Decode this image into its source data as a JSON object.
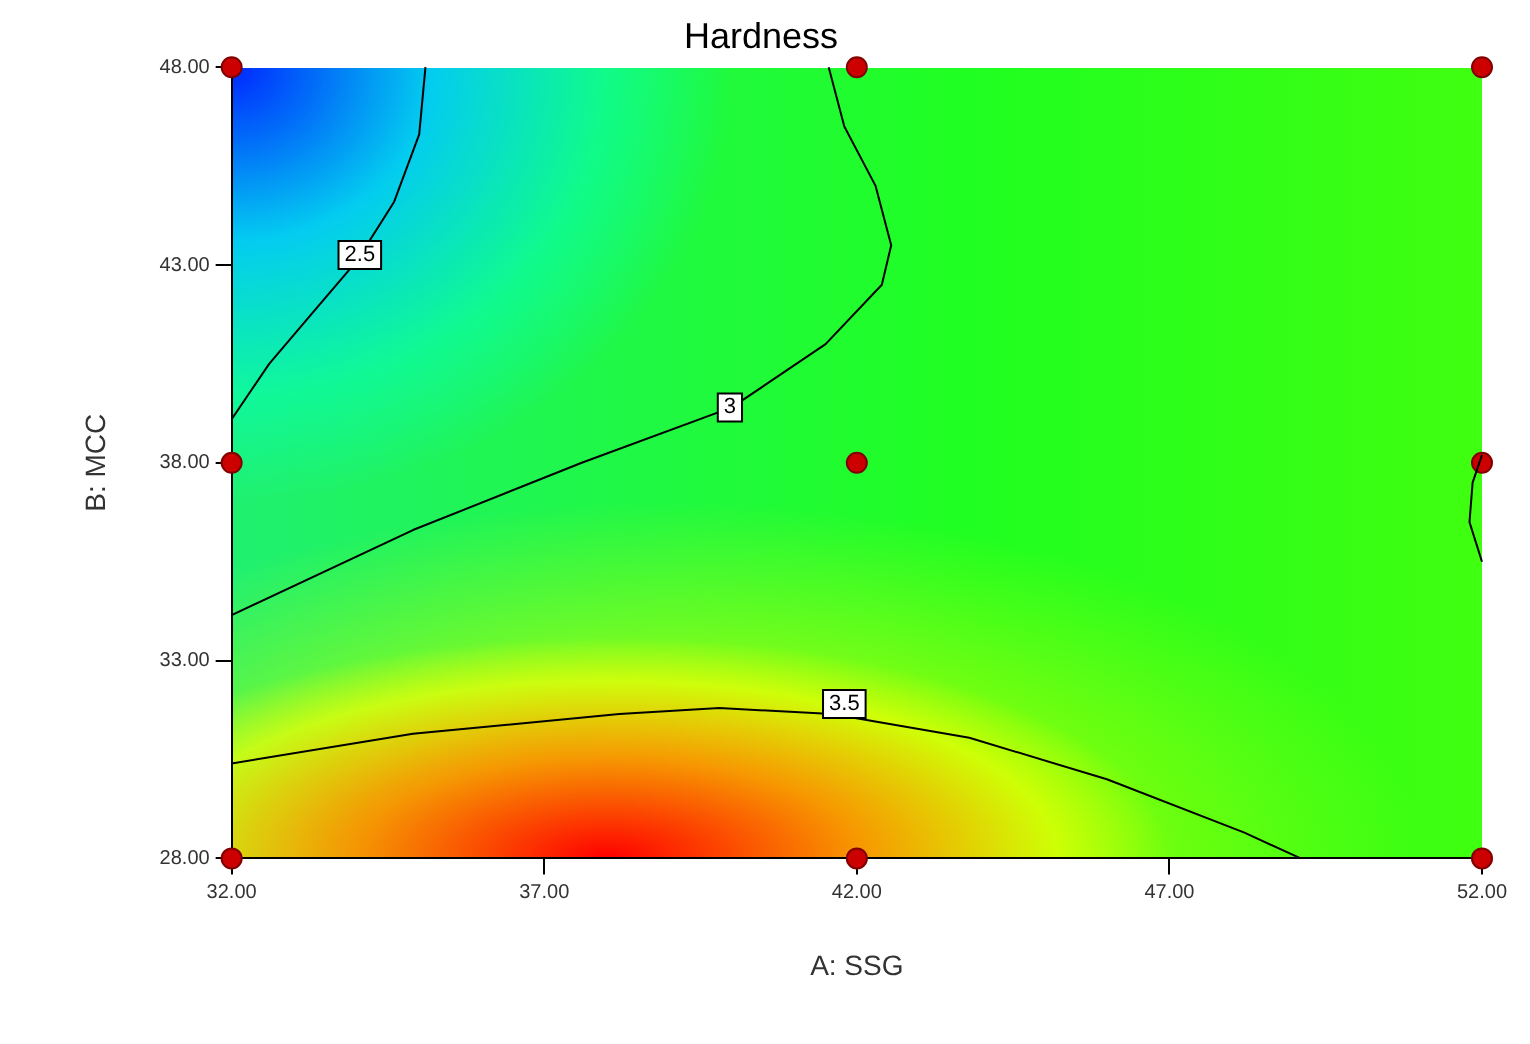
{
  "chart_data": {
    "type": "scatter",
    "title": "Hardness",
    "xlabel": "A: SSG",
    "ylabel": "B: MCC",
    "xlim": [
      32,
      52
    ],
    "ylim": [
      28,
      48
    ],
    "xticks": [
      {
        "value": 32,
        "label": "32.00"
      },
      {
        "value": 37,
        "label": "37.00"
      },
      {
        "value": 42,
        "label": "42.00"
      },
      {
        "value": 47,
        "label": "47.00"
      },
      {
        "value": 52,
        "label": "52.00"
      }
    ],
    "yticks": [
      {
        "value": 28,
        "label": "28.00"
      },
      {
        "value": 33,
        "label": "33.00"
      },
      {
        "value": 38,
        "label": "38.00"
      },
      {
        "value": 43,
        "label": "43.00"
      },
      {
        "value": 48,
        "label": "48.00"
      }
    ],
    "grid": false,
    "legend": false,
    "series": [
      {
        "type": "line",
        "color": "#000000",
        "marker": "none",
        "x": [
          32,
          32.6,
          33.3,
          34.0,
          34.6,
          35.0,
          35.1
        ],
        "values": [
          39.1,
          40.5,
          41.8,
          43.1,
          44.6,
          46.3,
          48
        ]
      },
      {
        "type": "line",
        "color": "#000000",
        "marker": "none",
        "x": [
          32,
          34.9,
          37.6,
          40,
          41.5,
          42.4,
          42.55,
          42.3,
          41.8,
          41.55
        ],
        "values": [
          34.15,
          36.3,
          38,
          39.4,
          41,
          42.5,
          43.5,
          45,
          46.5,
          48
        ]
      },
      {
        "type": "line",
        "color": "#000000",
        "marker": "none",
        "x": [
          52,
          51.85,
          51.8,
          52
        ],
        "values": [
          38.2,
          37.5,
          36.5,
          35.5
        ]
      },
      {
        "type": "line",
        "color": "#000000",
        "marker": "none",
        "x": [
          32,
          34.9,
          38.2,
          39.8,
          41.6,
          43.8,
          46.0,
          48.2,
          49.1
        ],
        "values": [
          30.4,
          31.15,
          31.65,
          31.8,
          31.65,
          31.05,
          30.0,
          28.65,
          28
        ]
      },
      {
        "type": "scatter",
        "color": "#cc0000",
        "marker": "circle",
        "x": [
          32,
          42,
          52,
          32,
          42,
          52,
          32,
          42,
          52
        ],
        "values": [
          28,
          28,
          28,
          38,
          38,
          38,
          48,
          48,
          48
        ]
      }
    ],
    "annotations": [
      {
        "text": "2.5",
        "x": 34.05,
        "y": 43.25
      },
      {
        "text": "3",
        "x": 39.97,
        "y": 39.4
      },
      {
        "text": "3.5",
        "x": 41.8,
        "y": 31.9
      }
    ]
  }
}
